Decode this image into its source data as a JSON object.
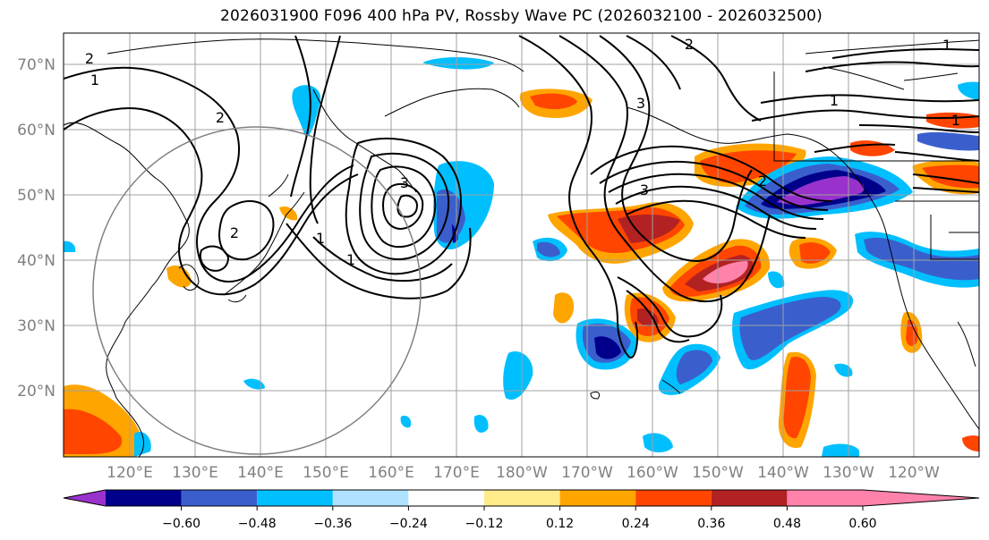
{
  "title": "2026031900 F096 400 hPa PV, Rossby Wave PC (2026032100 - 2026032500)",
  "lat_labels": [
    "70°N",
    "60°N",
    "50°N",
    "40°N",
    "30°N",
    "20°N"
  ],
  "lon_labels": [
    "120°E",
    "130°E",
    "140°E",
    "150°E",
    "160°E",
    "170°E",
    "180°W",
    "170°W",
    "160°W",
    "150°W",
    "140°W",
    "130°W",
    "120°W"
  ],
  "colorbar": {
    "ticks": [
      "−0.60",
      "−0.48",
      "−0.36",
      "−0.24",
      "−0.12",
      "0.12",
      "0.24",
      "0.36",
      "0.48",
      "0.60"
    ],
    "colors": [
      "#9932cc",
      "#00008b",
      "#3a5fcd",
      "#00bfff",
      "#b0e2ff",
      "#ffffff",
      "#ffeb8a",
      "#ffa500",
      "#ff4500",
      "#b22222",
      "#ff82ab"
    ]
  },
  "contour_labels": [
    "2",
    "1",
    "2",
    "3",
    "1",
    "3",
    "2",
    "1",
    "2",
    "1",
    "1",
    "3",
    "2",
    "1"
  ]
}
